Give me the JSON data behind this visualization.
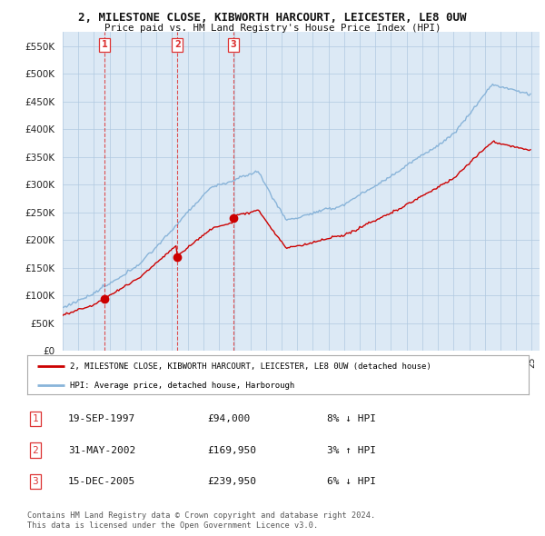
{
  "title": "2, MILESTONE CLOSE, KIBWORTH HARCOURT, LEICESTER, LE8 0UW",
  "subtitle": "Price paid vs. HM Land Registry's House Price Index (HPI)",
  "ylim": [
    0,
    575000
  ],
  "yticks": [
    0,
    50000,
    100000,
    150000,
    200000,
    250000,
    300000,
    350000,
    400000,
    450000,
    500000,
    550000
  ],
  "ytick_labels": [
    "£0",
    "£50K",
    "£100K",
    "£150K",
    "£200K",
    "£250K",
    "£300K",
    "£350K",
    "£400K",
    "£450K",
    "£500K",
    "£550K"
  ],
  "sale_prices": [
    94000,
    169950,
    239950
  ],
  "sale_labels": [
    "1",
    "2",
    "3"
  ],
  "property_line_color": "#cc0000",
  "hpi_line_color": "#89b4d9",
  "chart_bg_color": "#dce9f5",
  "background_color": "#ffffff",
  "grid_color": "#b0c8e0",
  "vline_color": "#dd3333",
  "legend_property": "2, MILESTONE CLOSE, KIBWORTH HARCOURT, LEICESTER, LE8 0UW (detached house)",
  "legend_hpi": "HPI: Average price, detached house, Harborough",
  "table_rows": [
    {
      "num": "1",
      "date": "19-SEP-1997",
      "price": "£94,000",
      "hpi": "8% ↓ HPI"
    },
    {
      "num": "2",
      "date": "31-MAY-2002",
      "price": "£169,950",
      "hpi": "3% ↑ HPI"
    },
    {
      "num": "3",
      "date": "15-DEC-2005",
      "price": "£239,950",
      "hpi": "6% ↓ HPI"
    }
  ],
  "footnote1": "Contains HM Land Registry data © Crown copyright and database right 2024.",
  "footnote2": "This data is licensed under the Open Government Licence v3.0."
}
